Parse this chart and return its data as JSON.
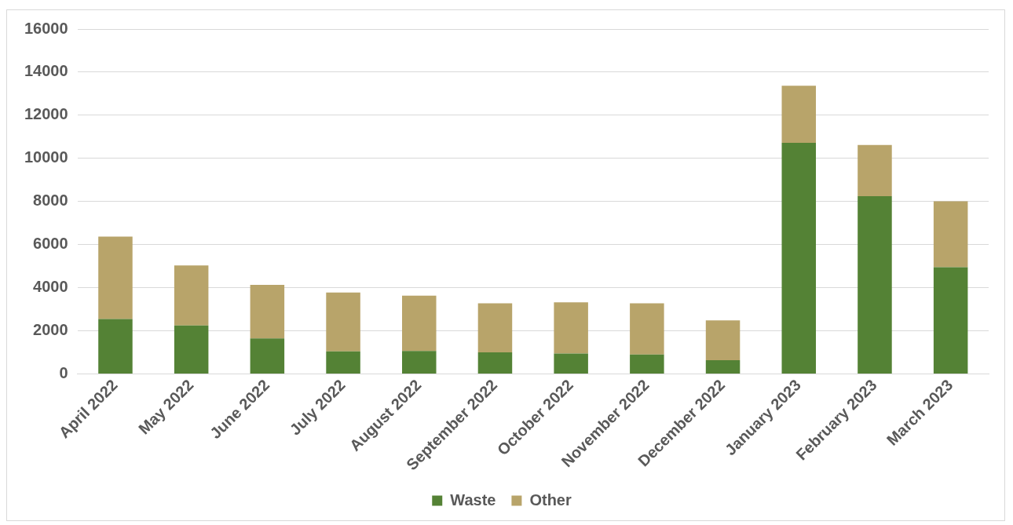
{
  "chart_data": {
    "type": "bar",
    "stacked": true,
    "categories": [
      "April 2022",
      "May 2022",
      "June 2022",
      "July 2022",
      "August 2022",
      "September 2022",
      "October 2022",
      "November 2022",
      "December 2022",
      "January 2023",
      "February 2023",
      "March 2023"
    ],
    "series": [
      {
        "name": "Waste",
        "color": "#548235",
        "values": [
          2550,
          2250,
          1650,
          1050,
          1070,
          1000,
          950,
          900,
          640,
          10720,
          8250,
          4950
        ]
      },
      {
        "name": "Other",
        "color": "#b8a46a",
        "values": [
          3820,
          2780,
          2480,
          2730,
          2560,
          2280,
          2370,
          2380,
          1850,
          2650,
          2370,
          3060
        ]
      }
    ],
    "ylim": [
      0,
      16000
    ],
    "yticks": [
      0,
      2000,
      4000,
      6000,
      8000,
      10000,
      12000,
      14000,
      16000
    ],
    "grid": "y",
    "legend": "bottom"
  }
}
